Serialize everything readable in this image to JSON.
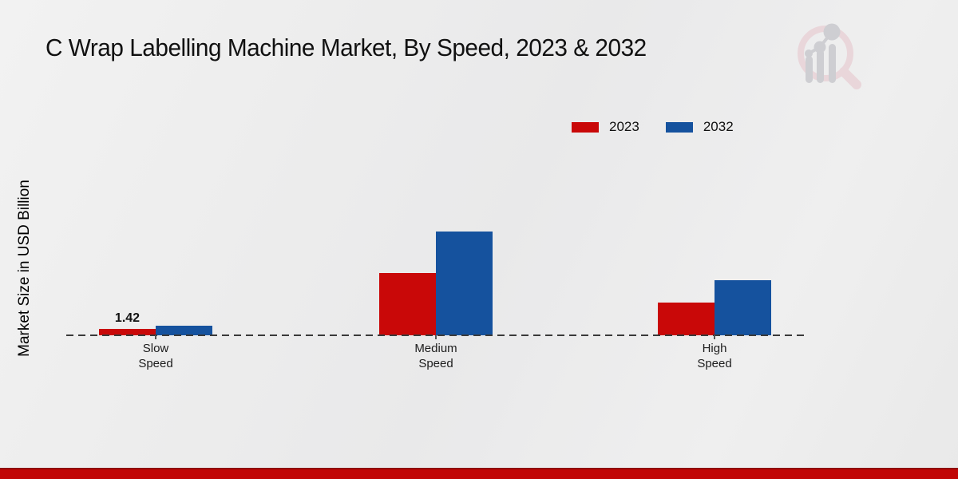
{
  "chart_data": {
    "type": "bar",
    "title": "C Wrap Labelling Machine Market, By Speed, 2023 & 2032",
    "ylabel": "Market Size in USD Billion",
    "xlabel": "",
    "categories": [
      "Slow\nSpeed",
      "Medium\nSpeed",
      "High\nSpeed"
    ],
    "series": [
      {
        "name": "2023",
        "color": "#c90808",
        "values": [
          1.42,
          13.9,
          7.3
        ]
      },
      {
        "name": "2032",
        "color": "#15529e",
        "values": [
          2.1,
          23.3,
          12.3
        ]
      }
    ],
    "ylim": [
      0,
      25
    ],
    "grid": false,
    "legend_position": "top-right",
    "baseline_style": "dashed",
    "annotations": [
      {
        "series_index": 0,
        "category_index": 0,
        "text": "1.42"
      }
    ]
  },
  "legend": {
    "items": [
      {
        "label": "2023",
        "color": "#c90808"
      },
      {
        "label": "2032",
        "color": "#15529e"
      }
    ]
  },
  "branding": {
    "logo_name": "magnifier-bar-chart-watermark",
    "footer_stripe_color": "#c10505"
  }
}
